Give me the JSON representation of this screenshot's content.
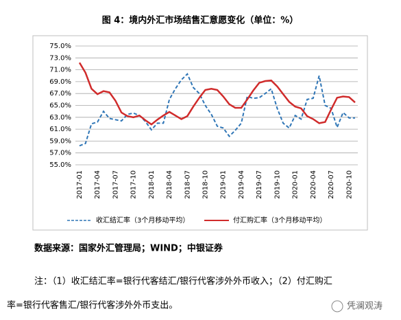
{
  "chart_data": {
    "type": "line",
    "title": "图 4：境内外汇市场结售汇意愿变化（单位：%）",
    "categories": [
      "2017-01",
      null,
      null,
      "2017-04",
      null,
      null,
      "2017-07",
      null,
      null,
      "2017-10",
      null,
      null,
      "2018-01",
      null,
      null,
      "2018-04",
      null,
      null,
      "2018-07",
      null,
      null,
      "2018-10",
      null,
      null,
      "2019-01",
      null,
      null,
      "2019-04",
      null,
      null,
      "2019-07",
      null,
      null,
      "2019-10",
      null,
      null,
      "2020-01",
      null,
      null,
      "2020-04",
      null,
      null,
      "2020-07",
      null,
      null,
      "2020-10",
      null
    ],
    "series": [
      {
        "name": "收汇结汇率（3个月移动平均）",
        "color": "#2e75b6",
        "dash": true,
        "values": [
          58.2,
          58.6,
          61.9,
          62.2,
          64.0,
          62.8,
          62.6,
          62.4,
          63.5,
          63.7,
          63.3,
          62.3,
          60.9,
          62.0,
          62.0,
          66.0,
          67.8,
          69.3,
          70.3,
          68.0,
          67.0,
          65.0,
          63.5,
          61.5,
          61.2,
          59.8,
          60.8,
          62.0,
          66.5,
          66.2,
          66.3,
          67.0,
          67.8,
          64.5,
          62.0,
          61.2,
          63.3,
          62.7,
          66.0,
          66.2,
          70.0,
          65.0,
          64.5,
          61.3,
          63.8,
          62.9,
          62.9
        ]
      },
      {
        "name": "付汇购汇率（3个月移动平均）",
        "color": "#d02b2b",
        "dash": false,
        "values": [
          72.2,
          70.5,
          67.8,
          66.9,
          67.4,
          67.2,
          65.8,
          63.8,
          63.2,
          63.0,
          63.3,
          62.5,
          61.8,
          62.6,
          63.3,
          63.9,
          63.3,
          62.7,
          63.2,
          64.8,
          66.3,
          67.6,
          67.8,
          67.6,
          66.5,
          65.2,
          64.6,
          64.6,
          66.0,
          67.5,
          68.8,
          69.1,
          69.2,
          68.2,
          66.9,
          65.6,
          64.8,
          64.5,
          63.2,
          62.7,
          62.0,
          62.2,
          64.3,
          66.3,
          66.5,
          66.4,
          65.5
        ]
      }
    ],
    "ylim": [
      55,
      75
    ],
    "yticks": [
      {
        "value": 55,
        "label": "55.0%"
      },
      {
        "value": 57,
        "label": "57.0%"
      },
      {
        "value": 59,
        "label": "59.0%"
      },
      {
        "value": 61,
        "label": "61.0%"
      },
      {
        "value": 63,
        "label": "63.0%"
      },
      {
        "value": 65,
        "label": "65.0%"
      },
      {
        "value": 67,
        "label": "67.0%"
      },
      {
        "value": 69,
        "label": "69.0%"
      },
      {
        "value": 71,
        "label": "71.0%"
      },
      {
        "value": 73,
        "label": "73.0%"
      },
      {
        "value": 75,
        "label": "75.0%"
      }
    ],
    "grid": true,
    "legend": "bottom"
  },
  "document": {
    "source": "数据来源：国家外汇管理局；WIND；中银证券",
    "note_line1": "注：（1）收汇结汇率=银行代客结汇/银行代客涉外外币收入；（2）付汇购汇",
    "note_line2": "率=银行代客售汇/银行代客涉外外币支出。",
    "watermark": "凭澜观涛"
  }
}
